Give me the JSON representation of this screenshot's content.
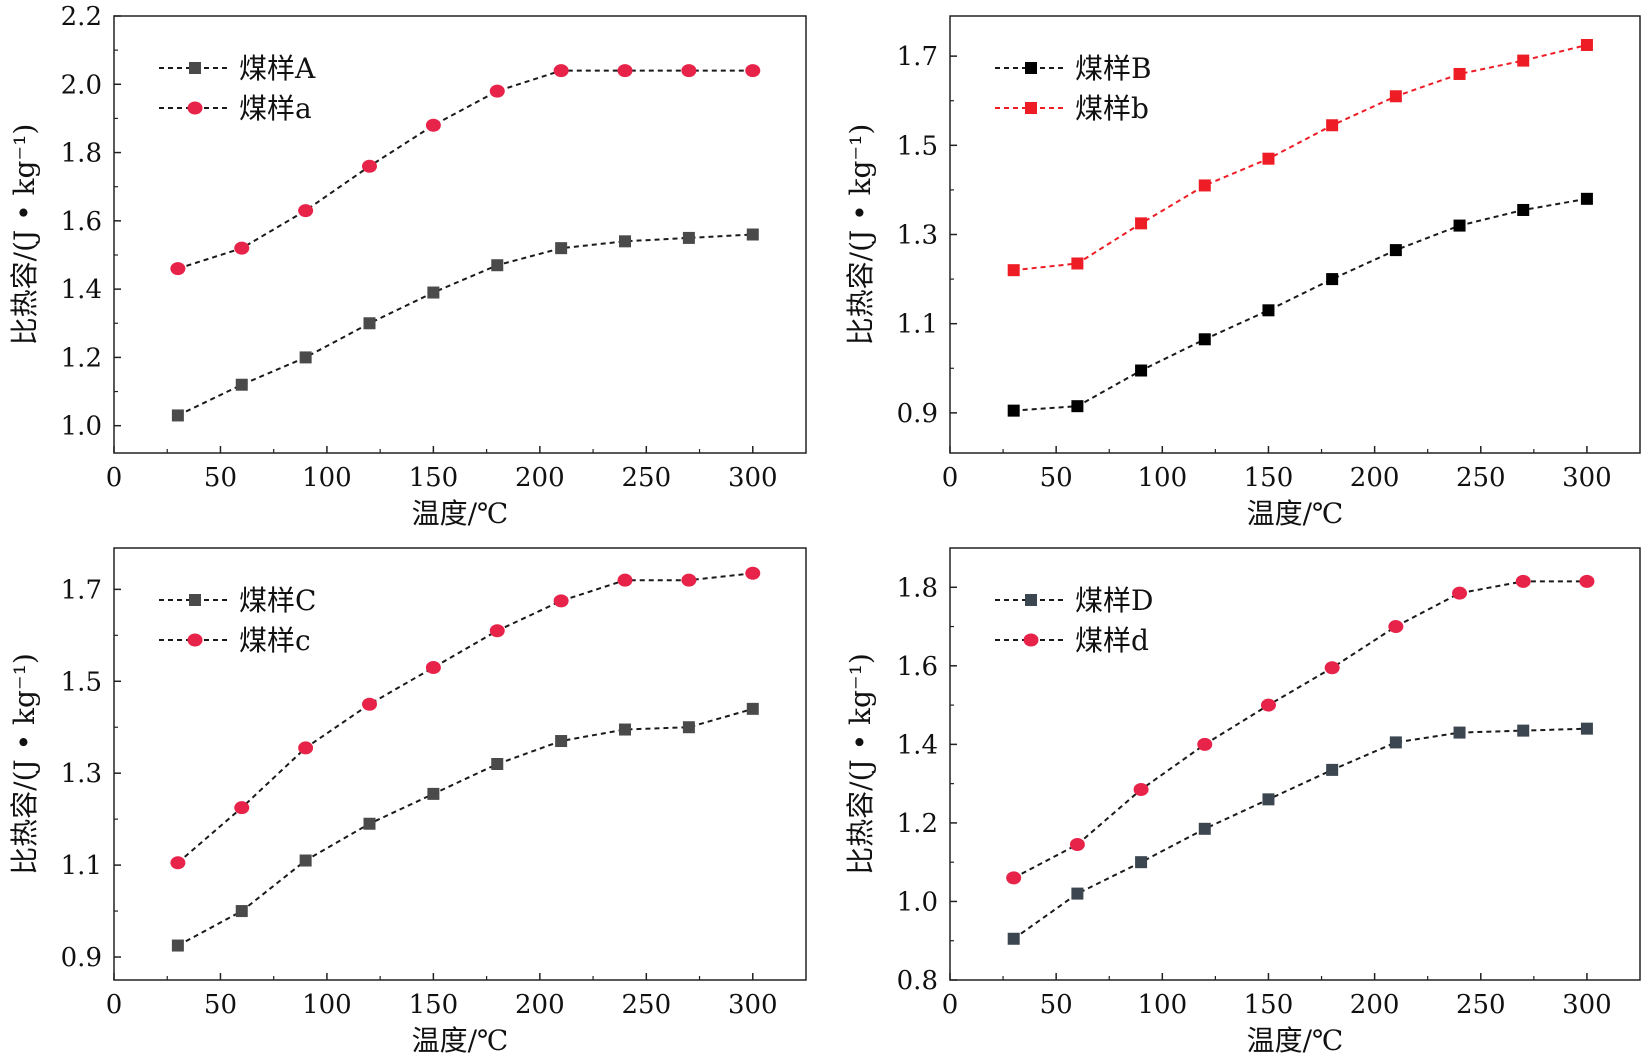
{
  "chart_data": [
    {
      "type": "line",
      "xlabel": "温度/℃",
      "ylabel": "比热容/(J • kg⁻¹)",
      "xlim": [
        0,
        325
      ],
      "ylim": [
        0.92,
        2.2
      ],
      "xticks": [
        0,
        50,
        100,
        150,
        200,
        250,
        300
      ],
      "yticks": [
        1.0,
        1.2,
        1.4,
        1.6,
        1.8,
        2.0,
        2.2
      ],
      "ytick_decimals": 1,
      "x": [
        30,
        60,
        90,
        120,
        150,
        180,
        210,
        240,
        270,
        300
      ],
      "legend_position": "top-left",
      "grid": false,
      "series": [
        {
          "name": "煤样A",
          "marker": "square",
          "color": "#4a4a4a",
          "values": [
            1.03,
            1.12,
            1.2,
            1.3,
            1.39,
            1.47,
            1.52,
            1.54,
            1.55,
            1.56
          ]
        },
        {
          "name": "煤样a",
          "marker": "circle",
          "color": "#e8234a",
          "values": [
            1.46,
            1.52,
            1.63,
            1.76,
            1.88,
            1.98,
            2.04,
            2.04,
            2.04,
            2.04
          ]
        }
      ]
    },
    {
      "type": "line",
      "xlabel": "温度/℃",
      "ylabel": "比热容/(J • kg⁻¹)",
      "xlim": [
        0,
        325
      ],
      "ylim": [
        0.81,
        1.79
      ],
      "xticks": [
        0,
        50,
        100,
        150,
        200,
        250,
        300
      ],
      "yticks": [
        0.9,
        1.1,
        1.3,
        1.5,
        1.7
      ],
      "ytick_decimals": 1,
      "x": [
        30,
        60,
        90,
        120,
        150,
        180,
        210,
        240,
        270,
        300
      ],
      "legend_position": "top-left",
      "grid": false,
      "series": [
        {
          "name": "煤样B",
          "marker": "square",
          "color": "#000000",
          "values": [
            0.905,
            0.915,
            0.995,
            1.065,
            1.13,
            1.2,
            1.265,
            1.32,
            1.355,
            1.38
          ]
        },
        {
          "name": "煤样b",
          "marker": "square",
          "color": "#ee1c24",
          "values": [
            1.22,
            1.235,
            1.325,
            1.41,
            1.47,
            1.545,
            1.61,
            1.66,
            1.69,
            1.725
          ]
        }
      ]
    },
    {
      "type": "line",
      "xlabel": "温度/℃",
      "ylabel": "比热容/(J • kg⁻¹)",
      "xlim": [
        0,
        325
      ],
      "ylim": [
        0.85,
        1.79
      ],
      "xticks": [
        0,
        50,
        100,
        150,
        200,
        250,
        300
      ],
      "yticks": [
        0.9,
        1.1,
        1.3,
        1.5,
        1.7
      ],
      "ytick_decimals": 1,
      "x": [
        30,
        60,
        90,
        120,
        150,
        180,
        210,
        240,
        270,
        300
      ],
      "legend_position": "top-left",
      "grid": false,
      "series": [
        {
          "name": "煤样C",
          "marker": "square",
          "color": "#4a4a4a",
          "values": [
            0.925,
            1.0,
            1.11,
            1.19,
            1.255,
            1.32,
            1.37,
            1.395,
            1.4,
            1.44
          ]
        },
        {
          "name": "煤样c",
          "marker": "circle",
          "color": "#e8234a",
          "values": [
            1.105,
            1.225,
            1.355,
            1.45,
            1.53,
            1.61,
            1.675,
            1.72,
            1.72,
            1.735
          ]
        }
      ]
    },
    {
      "type": "line",
      "xlabel": "温度/℃",
      "ylabel": "比热容/(J • kg⁻¹)",
      "xlim": [
        0,
        325
      ],
      "ylim": [
        0.8,
        1.9
      ],
      "xticks": [
        0,
        50,
        100,
        150,
        200,
        250,
        300
      ],
      "yticks": [
        0.8,
        1.0,
        1.2,
        1.4,
        1.6,
        1.8
      ],
      "ytick_decimals": 1,
      "x": [
        30,
        60,
        90,
        120,
        150,
        180,
        210,
        240,
        270,
        300
      ],
      "legend_position": "top-left",
      "grid": false,
      "series": [
        {
          "name": "煤样D",
          "marker": "square",
          "color": "#3b4650",
          "values": [
            0.905,
            1.02,
            1.1,
            1.185,
            1.26,
            1.335,
            1.405,
            1.43,
            1.435,
            1.44
          ]
        },
        {
          "name": "煤样d",
          "marker": "circle",
          "color": "#e8234a",
          "values": [
            1.06,
            1.145,
            1.285,
            1.4,
            1.5,
            1.595,
            1.7,
            1.785,
            1.815,
            1.815
          ]
        }
      ]
    }
  ]
}
